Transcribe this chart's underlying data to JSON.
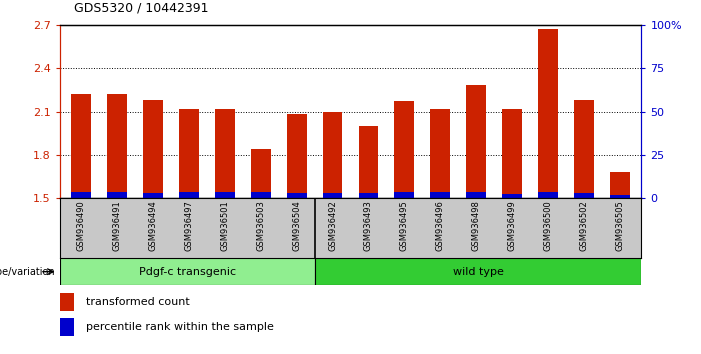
{
  "title": "GDS5320 / 10442391",
  "categories": [
    "GSM936490",
    "GSM936491",
    "GSM936494",
    "GSM936497",
    "GSM936501",
    "GSM936503",
    "GSM936504",
    "GSM936492",
    "GSM936493",
    "GSM936495",
    "GSM936496",
    "GSM936498",
    "GSM936499",
    "GSM936500",
    "GSM936502",
    "GSM936505"
  ],
  "red_values": [
    2.22,
    2.22,
    2.18,
    2.12,
    2.12,
    1.84,
    2.08,
    2.1,
    2.0,
    2.17,
    2.12,
    2.28,
    2.12,
    2.67,
    2.18,
    1.68
  ],
  "blue_values": [
    0.04,
    0.04,
    0.03,
    0.04,
    0.04,
    0.04,
    0.03,
    0.03,
    0.03,
    0.04,
    0.04,
    0.04,
    0.025,
    0.04,
    0.03,
    0.015
  ],
  "ymin": 1.5,
  "ymax": 2.7,
  "yticks_left": [
    1.5,
    1.8,
    2.1,
    2.4,
    2.7
  ],
  "yticks_right": [
    0,
    25,
    50,
    75,
    100
  ],
  "yright_label": "%",
  "group1_label": "Pdgf-c transgenic",
  "group2_label": "wild type",
  "group1_count": 7,
  "group1_color": "#90EE90",
  "group2_color": "#33CC33",
  "genotype_label": "genotype/variation",
  "legend_red": "transformed count",
  "legend_blue": "percentile rank within the sample",
  "bar_color_red": "#CC2200",
  "bar_color_blue": "#0000CC",
  "bg_color": "#C8C8C8",
  "plot_bg": "#FFFFFF",
  "axis_color_left": "#CC2200",
  "axis_color_right": "#0000CC"
}
